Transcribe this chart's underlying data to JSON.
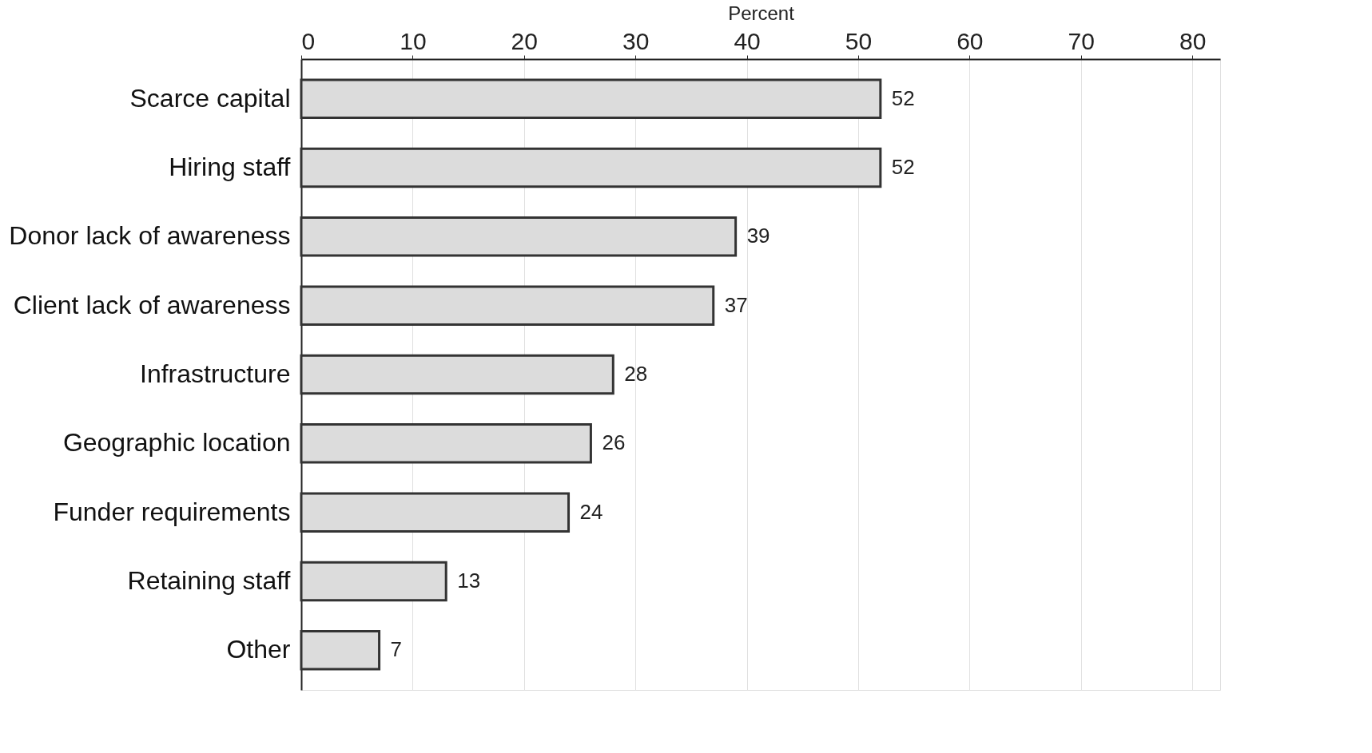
{
  "chart_data": {
    "type": "bar",
    "orientation": "horizontal",
    "xlabel": "Percent",
    "categories": [
      "Scarce capital",
      "Hiring staff",
      "Donor lack of awareness",
      "Client lack of awareness",
      "Infrastructure",
      "Geographic location",
      "Funder requirements",
      "Retaining staff",
      "Other"
    ],
    "values": [
      52,
      52,
      39,
      37,
      28,
      26,
      24,
      13,
      7
    ],
    "color": "#dcdcdc",
    "xlim": [
      0,
      82.5
    ],
    "xticks": [
      0,
      10,
      20,
      30,
      40,
      50,
      60,
      70,
      80
    ],
    "grid": "x",
    "data_labels": true
  }
}
